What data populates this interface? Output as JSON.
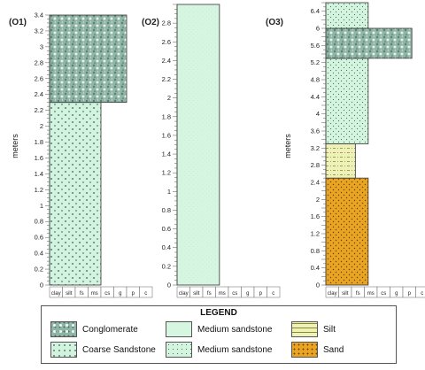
{
  "columns": [
    {
      "id": "O1",
      "label": "(O1)",
      "axis_label": "meters",
      "y_max": 3.4,
      "ticks": [
        "0",
        "0.2",
        "0.4",
        "0.6",
        "0.8",
        "1",
        "1.2",
        "1.4",
        "1.6",
        "1.8",
        "2",
        "2.2",
        "2.4",
        "2.6",
        "2.8",
        "3",
        "3.2",
        "3.4"
      ],
      "grain_labels": [
        "clay",
        "silt",
        "fs",
        "ms",
        "cs",
        "g",
        "p",
        "c"
      ],
      "layers": [
        {
          "from": 0,
          "to": 2.3,
          "lithology": "coarse_sandstone",
          "grain_extent": 4
        },
        {
          "from": 2.3,
          "to": 3.4,
          "lithology": "conglomerate",
          "grain_extent": 6
        }
      ]
    },
    {
      "id": "O2",
      "label": "(O2)",
      "axis_label": "",
      "y_max": 3.0,
      "ticks": [
        "0",
        "0.2",
        "0.4",
        "0.6",
        "0.8",
        "1",
        "1.2",
        "1.4",
        "1.6",
        "1.8",
        "2",
        "2.2",
        "2.4",
        "2.6",
        "2.8"
      ],
      "grain_labels": [
        "clay",
        "silt",
        "fs",
        "ms",
        "cs",
        "g",
        "p",
        "c"
      ],
      "layers": [
        {
          "from": 0,
          "to": 3.0,
          "lithology": "medium_sandstone_plain",
          "grain_extent": 3.3
        }
      ]
    },
    {
      "id": "O3",
      "label": "(O3)",
      "axis_label": "meters",
      "y_max": 6.6,
      "ticks": [
        "0",
        "0.4",
        "0.8",
        "1.2",
        "1.6",
        "2",
        "2.4",
        "2.8",
        "3.2",
        "3.6",
        "4",
        "4.4",
        "4.8",
        "5.2",
        "5.6",
        "6",
        "6.4"
      ],
      "grain_labels": [
        "clay",
        "silt",
        "fs",
        "ms",
        "cs",
        "g",
        "p",
        "c"
      ],
      "layers": [
        {
          "from": 0,
          "to": 2.5,
          "lithology": "sand",
          "grain_extent": 3.3
        },
        {
          "from": 2.5,
          "to": 3.3,
          "lithology": "silt",
          "grain_extent": 2.3
        },
        {
          "from": 3.3,
          "to": 5.3,
          "lithology": "medium_sandstone_dotted",
          "grain_extent": 3.3
        },
        {
          "from": 5.3,
          "to": 6.0,
          "lithology": "conglomerate",
          "grain_extent": 6.7
        },
        {
          "from": 6.0,
          "to": 6.6,
          "lithology": "medium_sandstone_dotted",
          "grain_extent": 3.3
        }
      ]
    }
  ],
  "legend": {
    "title": "LEGEND",
    "items": [
      {
        "key": "conglomerate",
        "label": "Conglomerate"
      },
      {
        "key": "medium_sandstone_plain",
        "label": "Medium sandstone"
      },
      {
        "key": "silt",
        "label": "Silt"
      },
      {
        "key": "coarse_sandstone",
        "label": "Coarse Sandstone"
      },
      {
        "key": "medium_sandstone_dotted",
        "label": "Medium sandstone"
      },
      {
        "key": "sand",
        "label": "Sand"
      }
    ]
  },
  "colors": {
    "conglomerate": "#8fb5a6",
    "coarse_sandstone": "#d3f3e0",
    "medium_sandstone_plain": "#d6f6e2",
    "medium_sandstone_dotted": "#d4f4df",
    "silt": "#eef2b8",
    "sand": "#e9a424",
    "outline": "#333333"
  }
}
